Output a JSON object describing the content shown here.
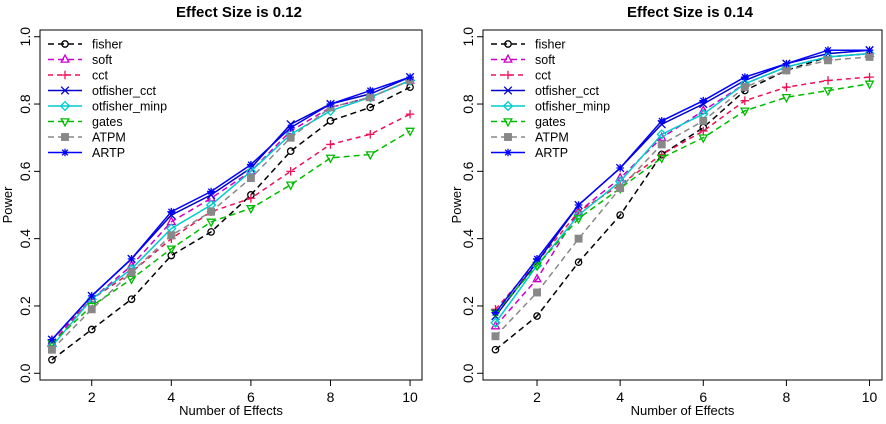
{
  "chart_data": [
    {
      "type": "line",
      "title": "Effect Size is 0.12",
      "xlabel": "Number of Effects",
      "ylabel": "Power",
      "xlim": [
        0.7,
        10.3
      ],
      "ylim": [
        -0.02,
        1.02
      ],
      "xticks": [
        2,
        4,
        6,
        8,
        10
      ],
      "yticks": [
        0.0,
        0.2,
        0.4,
        0.6,
        0.8,
        1.0
      ],
      "ytick_labels": [
        "0.0",
        "0.2",
        "0.4",
        "0.6",
        "0.8",
        "1.0"
      ],
      "legend_position": "top-left",
      "x": [
        1,
        2,
        3,
        4,
        5,
        6,
        7,
        8,
        9,
        10
      ],
      "series": [
        {
          "name": "fisher",
          "color": "#000000",
          "marker": "circle",
          "values": [
            0.04,
            0.13,
            0.22,
            0.35,
            0.42,
            0.53,
            0.66,
            0.75,
            0.79,
            0.85
          ]
        },
        {
          "name": "soft",
          "color": "#cc00cc",
          "marker": "triangle-up",
          "values": [
            0.09,
            0.22,
            0.32,
            0.45,
            0.52,
            0.6,
            0.72,
            0.79,
            0.82,
            0.87
          ]
        },
        {
          "name": "cct",
          "color": "#ee1155",
          "marker": "plus",
          "values": [
            0.1,
            0.22,
            0.3,
            0.4,
            0.48,
            0.52,
            0.6,
            0.68,
            0.71,
            0.77
          ]
        },
        {
          "name": "otfisher_cct",
          "color": "#0000cc",
          "marker": "cross",
          "values": [
            0.1,
            0.23,
            0.34,
            0.47,
            0.53,
            0.61,
            0.74,
            0.8,
            0.83,
            0.88
          ]
        },
        {
          "name": "otfisher_minp",
          "color": "#00cccc",
          "marker": "diamond",
          "values": [
            0.08,
            0.22,
            0.31,
            0.43,
            0.5,
            0.6,
            0.71,
            0.78,
            0.82,
            0.87
          ]
        },
        {
          "name": "gates",
          "color": "#00bb00",
          "marker": "triangle-down",
          "values": [
            0.09,
            0.2,
            0.28,
            0.37,
            0.45,
            0.49,
            0.56,
            0.64,
            0.65,
            0.72
          ]
        },
        {
          "name": "ATPM",
          "color": "#888888",
          "marker": "square",
          "values": [
            0.07,
            0.19,
            0.3,
            0.41,
            0.48,
            0.58,
            0.7,
            0.79,
            0.82,
            0.87
          ]
        },
        {
          "name": "ARTP",
          "color": "#0000ff",
          "marker": "star",
          "values": [
            0.1,
            0.23,
            0.34,
            0.48,
            0.54,
            0.62,
            0.73,
            0.8,
            0.84,
            0.88
          ]
        }
      ]
    },
    {
      "type": "line",
      "title": "Effect Size is 0.14",
      "xlabel": "Number of Effects",
      "ylabel": "Power",
      "xlim": [
        0.7,
        10.3
      ],
      "ylim": [
        -0.02,
        1.02
      ],
      "xticks": [
        2,
        4,
        6,
        8,
        10
      ],
      "yticks": [
        0.0,
        0.2,
        0.4,
        0.6,
        0.8,
        1.0
      ],
      "ytick_labels": [
        "0.0",
        "0.2",
        "0.4",
        "0.6",
        "0.8",
        "1.0"
      ],
      "legend_position": "top-left",
      "x": [
        1,
        2,
        3,
        4,
        5,
        6,
        7,
        8,
        9,
        10
      ],
      "series": [
        {
          "name": "fisher",
          "color": "#000000",
          "marker": "circle",
          "values": [
            0.07,
            0.17,
            0.33,
            0.47,
            0.65,
            0.73,
            0.84,
            0.9,
            0.94,
            0.95
          ]
        },
        {
          "name": "soft",
          "color": "#cc00cc",
          "marker": "triangle-up",
          "values": [
            0.14,
            0.28,
            0.48,
            0.58,
            0.7,
            0.78,
            0.86,
            0.91,
            0.94,
            0.95
          ]
        },
        {
          "name": "cct",
          "color": "#ee1155",
          "marker": "plus",
          "values": [
            0.19,
            0.33,
            0.48,
            0.56,
            0.65,
            0.72,
            0.81,
            0.85,
            0.87,
            0.88
          ]
        },
        {
          "name": "otfisher_cct",
          "color": "#0000cc",
          "marker": "cross",
          "values": [
            0.17,
            0.33,
            0.5,
            0.61,
            0.74,
            0.8,
            0.87,
            0.92,
            0.95,
            0.96
          ]
        },
        {
          "name": "otfisher_minp",
          "color": "#00cccc",
          "marker": "diamond",
          "values": [
            0.15,
            0.32,
            0.47,
            0.57,
            0.71,
            0.77,
            0.86,
            0.91,
            0.94,
            0.95
          ]
        },
        {
          "name": "gates",
          "color": "#00bb00",
          "marker": "triangle-down",
          "values": [
            0.18,
            0.32,
            0.46,
            0.55,
            0.64,
            0.7,
            0.78,
            0.82,
            0.84,
            0.86
          ]
        },
        {
          "name": "ATPM",
          "color": "#888888",
          "marker": "square",
          "values": [
            0.11,
            0.24,
            0.4,
            0.55,
            0.68,
            0.75,
            0.85,
            0.9,
            0.93,
            0.94
          ]
        },
        {
          "name": "ARTP",
          "color": "#0000ff",
          "marker": "star",
          "values": [
            0.18,
            0.34,
            0.5,
            0.61,
            0.75,
            0.81,
            0.88,
            0.92,
            0.96,
            0.96
          ]
        }
      ]
    }
  ]
}
